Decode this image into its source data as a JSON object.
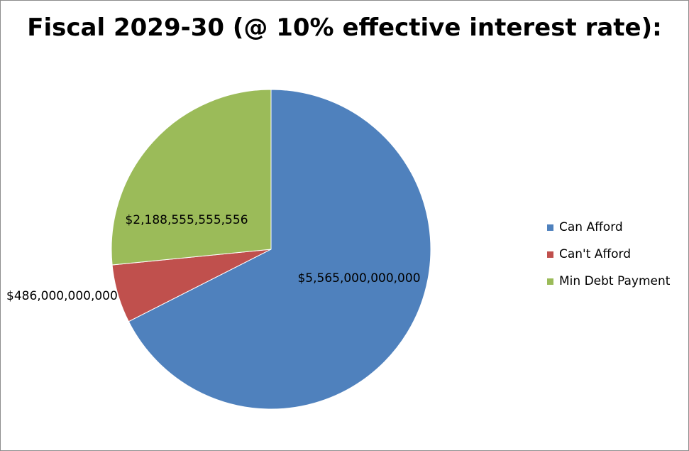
{
  "chart_data": {
    "type": "pie",
    "title": "Fiscal 2029-30 (@ 10% effective interest rate):",
    "slices": [
      {
        "name": "Can Afford",
        "value": 5565000000000,
        "label": "$5,565,000,000,000",
        "color": "#4F81BD"
      },
      {
        "name": "Can't Afford",
        "value": 486000000000,
        "label": "$486,000,000,000",
        "color": "#C0504D"
      },
      {
        "name": "Min Debt Payment",
        "value": 2188555555556,
        "label": "$2,188,555,555,556",
        "color": "#9BBB59"
      }
    ],
    "legend_position": "right"
  }
}
